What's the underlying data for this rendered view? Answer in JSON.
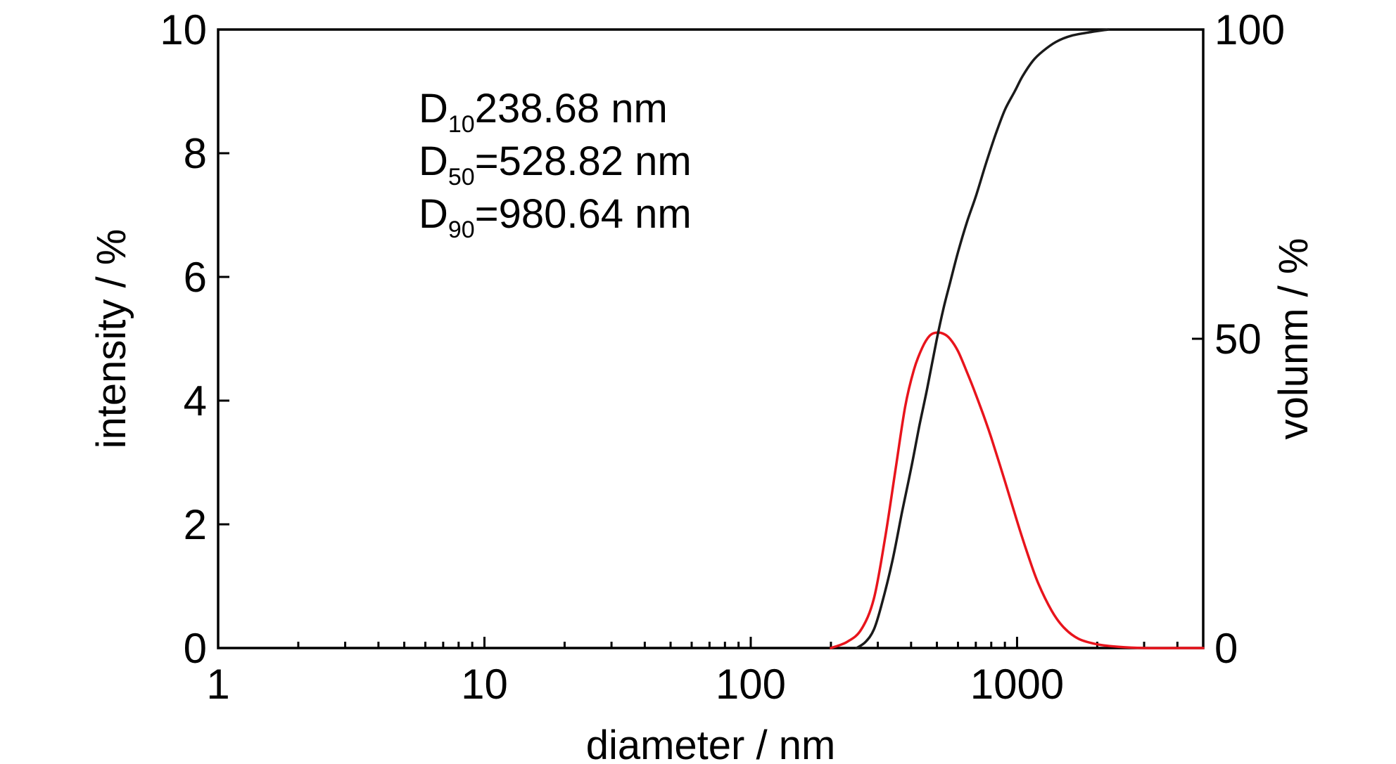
{
  "chart_data": {
    "type": "line",
    "title": "",
    "xlabel": "diameter / nm",
    "ylabel_left": "intensity / %",
    "ylabel_right": "volunm / %",
    "x_scale": "log",
    "xlim": [
      1,
      5000
    ],
    "ylim_left": [
      0,
      10
    ],
    "ylim_right": [
      0,
      100
    ],
    "x_ticks": [
      1,
      10,
      100,
      1000
    ],
    "x_tick_labels": [
      "1",
      "10",
      "100",
      "1000"
    ],
    "y_left_ticks": [
      0,
      2,
      4,
      6,
      8,
      10
    ],
    "y_left_tick_labels": [
      "0",
      "2",
      "4",
      "6",
      "8",
      "10"
    ],
    "y_right_ticks": [
      0,
      50,
      100
    ],
    "y_right_tick_labels": [
      "0",
      "50",
      "100"
    ],
    "grid": false,
    "annotations": [
      {
        "main": "D",
        "sub": "10",
        "rest": "238.68 nm"
      },
      {
        "main": "D",
        "sub": "50",
        "rest": "=528.82 nm"
      },
      {
        "main": "D",
        "sub": "90",
        "rest": "=980.64 nm"
      }
    ],
    "series": [
      {
        "axis": "left",
        "color": "#e8141c",
        "x": [
          200,
          230,
          260,
          290,
          320,
          350,
          380,
          410,
          440,
          470,
          500,
          530,
          560,
          600,
          650,
          700,
          750,
          800,
          900,
          1000,
          1100,
          1200,
          1350,
          1500,
          1700,
          2000,
          2400,
          3000,
          4000,
          5000
        ],
        "values": [
          0.0,
          0.1,
          0.3,
          0.8,
          1.8,
          2.9,
          3.9,
          4.5,
          4.85,
          5.05,
          5.1,
          5.08,
          5.0,
          4.8,
          4.45,
          4.1,
          3.75,
          3.4,
          2.7,
          2.05,
          1.5,
          1.05,
          0.6,
          0.33,
          0.15,
          0.06,
          0.02,
          0.0,
          0.0,
          0.0
        ]
      },
      {
        "axis": "right",
        "color": "#1a1a1a",
        "x": [
          250,
          270,
          290,
          310,
          340,
          370,
          400,
          430,
          460,
          500,
          530,
          560,
          600,
          650,
          700,
          760,
          830,
          900,
          980,
          1050,
          1150,
          1250,
          1400,
          1600,
          1900,
          2200
        ],
        "values": [
          0,
          1,
          3,
          7,
          14,
          22,
          29,
          36,
          42,
          50,
          55,
          59,
          64,
          69,
          73,
          78,
          83,
          87,
          90,
          92.5,
          95,
          96.5,
          98,
          99,
          99.6,
          100
        ]
      }
    ]
  }
}
